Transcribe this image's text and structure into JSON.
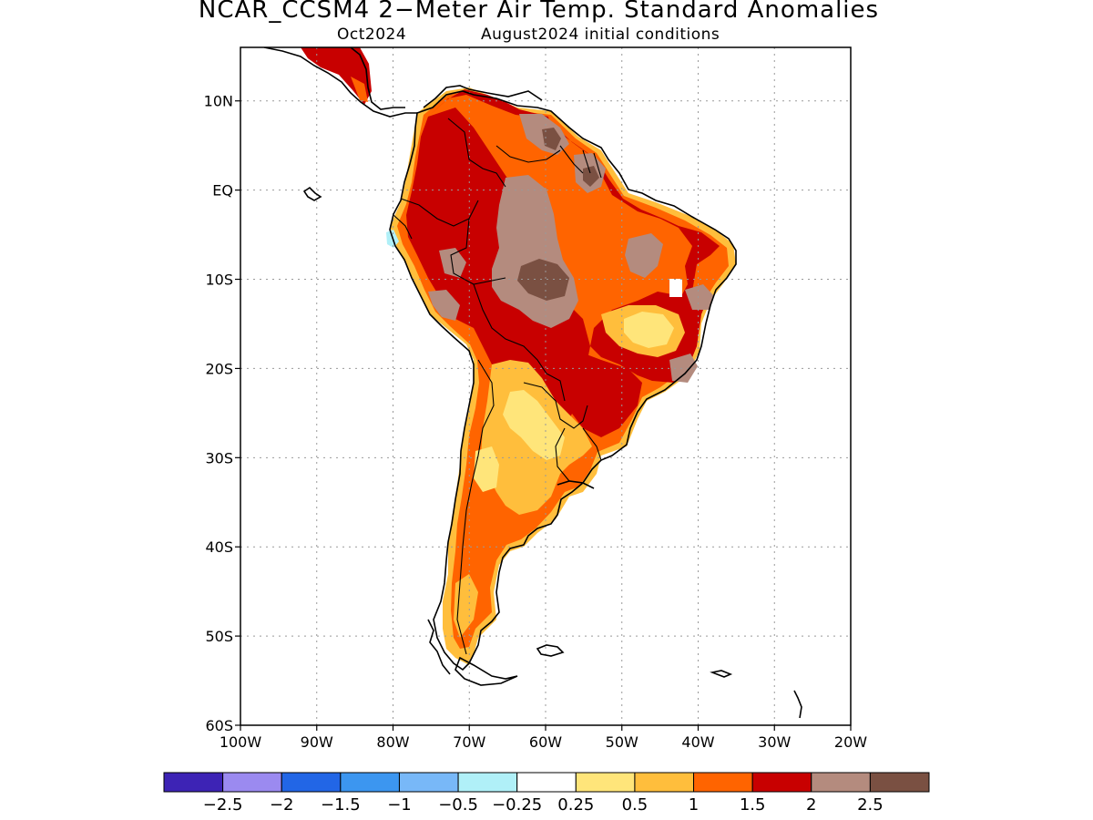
{
  "title": "NCAR_CCSM4 2−Meter Air Temp. Standard Anomalies",
  "subtitle_left": "Oct2024",
  "subtitle_right": "August2024 initial conditions",
  "map": {
    "region": "South America",
    "lon_range": [
      -100,
      -20
    ],
    "lat_range": [
      -60,
      16
    ],
    "grid": "dotted",
    "lat_ticks": [
      {
        "lat": 10,
        "label": "10N"
      },
      {
        "lat": 0,
        "label": "EQ"
      },
      {
        "lat": -10,
        "label": "10S"
      },
      {
        "lat": -20,
        "label": "20S"
      },
      {
        "lat": -30,
        "label": "30S"
      },
      {
        "lat": -40,
        "label": "40S"
      },
      {
        "lat": -50,
        "label": "50S"
      },
      {
        "lat": -60,
        "label": "60S"
      }
    ],
    "lon_ticks": [
      {
        "lon": -100,
        "label": "100W"
      },
      {
        "lon": -90,
        "label": "90W"
      },
      {
        "lon": -80,
        "label": "80W"
      },
      {
        "lon": -70,
        "label": "70W"
      },
      {
        "lon": -60,
        "label": "60W"
      },
      {
        "lon": -50,
        "label": "50W"
      },
      {
        "lon": -40,
        "label": "40W"
      },
      {
        "lon": -30,
        "label": "30W"
      },
      {
        "lon": -20,
        "label": "20W"
      }
    ]
  },
  "colorbar": {
    "colors": [
      "#3d23b5",
      "#9b8af0",
      "#2266e6",
      "#3c96f0",
      "#78b8f8",
      "#b0f0f8",
      "#ffffff",
      "#ffe57a",
      "#ffbe3c",
      "#ff6400",
      "#c80000",
      "#b48b7e",
      "#7a5042"
    ],
    "labels": [
      "−2.5",
      "−2",
      "−1.5",
      "−1",
      "−0.5",
      "−0.25",
      "0.25",
      "0.5",
      "1",
      "1.5",
      "2",
      "2.5"
    ]
  }
}
